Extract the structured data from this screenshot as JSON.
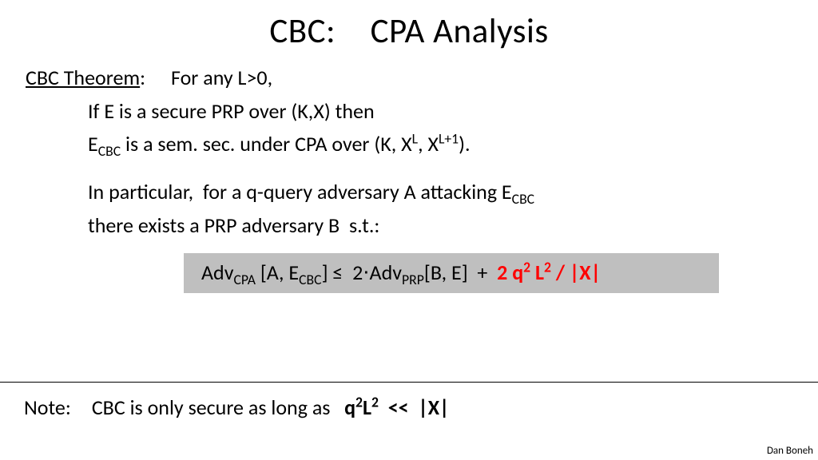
{
  "title": "CBC: CPA Analysis",
  "theorem_label": "CBC Theorem",
  "line1_tail": ":  For any L>0,",
  "line2": "If E is a secure PRP over (K,X) then",
  "line3_a": "E",
  "line3_sub": "CBC",
  "line3_b": " is a sem. sec. under CPA over (K, X",
  "line3_sup1": "L",
  "line3_c": ", X",
  "line3_sup2": "L+1",
  "line3_d": ").",
  "line4_a": "In particular,  for a q-query adversary A attacking E",
  "line4_sub": "CBC",
  "line5": "there exists a PRP adversary B  s.t.:",
  "formula_a": "Adv",
  "formula_sub1": "CPA",
  "formula_b": " [A, E",
  "formula_sub2": "CBC",
  "formula_c": "] ≤  2⋅Adv",
  "formula_sub3": "PRP",
  "formula_d": "[B, E]  +  ",
  "formula_red_a": "2 q",
  "formula_red_sup1": "2",
  "formula_red_b": " L",
  "formula_red_sup2": "2",
  "formula_red_c": " / |X|",
  "note_a": "Note: CBC is only secure as long as   ",
  "note_bold_a": "q",
  "note_bold_sup1": "2",
  "note_bold_b": "L",
  "note_bold_sup2": "2",
  "note_bold_c": "  <<  |X|",
  "author": "Dan Boneh"
}
